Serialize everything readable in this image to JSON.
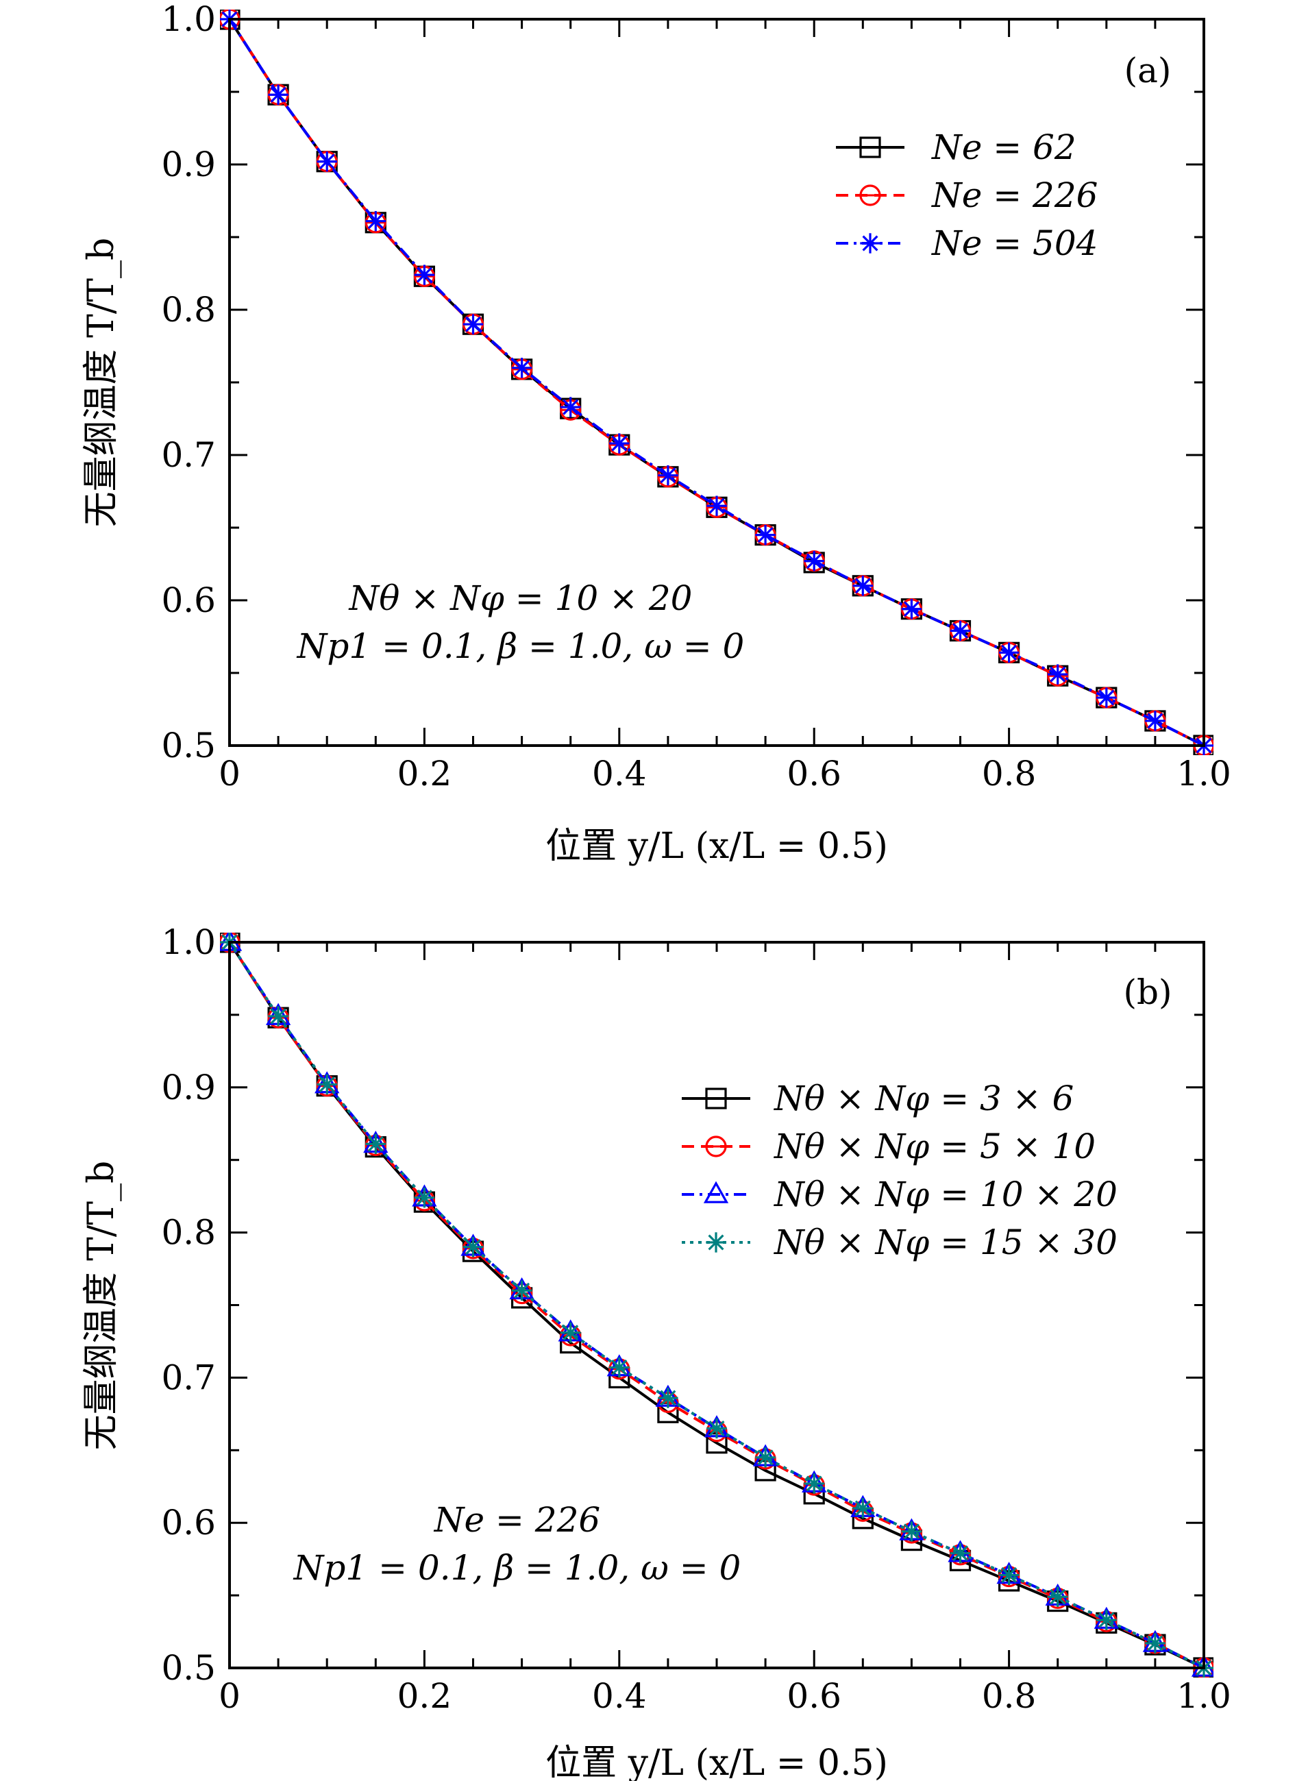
{
  "chart_data": [
    {
      "type": "line",
      "panel_label": "(a)",
      "xlabel": "位置 y/L (x/L = 0.5)",
      "ylabel": "无量纲温度 T/T_b",
      "xlim": [
        0,
        1.0
      ],
      "ylim": [
        0.5,
        1.0
      ],
      "x_ticks": [
        "0",
        "0.2",
        "0.4",
        "0.6",
        "0.8",
        "1.0"
      ],
      "y_ticks": [
        "0.5",
        "0.6",
        "0.7",
        "0.8",
        "0.9",
        "1.0"
      ],
      "annotation": [
        "Nθ × Nφ = 10 × 20",
        "Np1 = 0.1, β = 1.0, ω = 0"
      ],
      "legend_position": "top-right",
      "grid": false,
      "x": [
        0,
        0.05,
        0.1,
        0.15,
        0.2,
        0.25,
        0.3,
        0.35,
        0.4,
        0.45,
        0.5,
        0.55,
        0.6,
        0.65,
        0.7,
        0.75,
        0.8,
        0.85,
        0.9,
        0.95,
        1.0
      ],
      "series": [
        {
          "name": "Ne = 62",
          "color": "#000000",
          "marker": "square",
          "dash": "solid",
          "values": [
            1.0,
            0.948,
            0.902,
            0.86,
            0.823,
            0.79,
            0.759,
            0.732,
            0.707,
            0.685,
            0.664,
            0.645,
            0.626,
            0.61,
            0.594,
            0.579,
            0.564,
            0.548,
            0.533,
            0.517,
            0.5
          ]
        },
        {
          "name": "Ne = 226",
          "color": "#ff0000",
          "marker": "circle-bar",
          "dash": "dashed",
          "values": [
            1.0,
            0.948,
            0.902,
            0.86,
            0.823,
            0.79,
            0.759,
            0.731,
            0.707,
            0.685,
            0.664,
            0.645,
            0.627,
            0.61,
            0.594,
            0.579,
            0.564,
            0.548,
            0.533,
            0.517,
            0.5
          ]
        },
        {
          "name": "Ne = 504",
          "color": "#0000ff",
          "marker": "asterisk",
          "dash": "dashdot",
          "values": [
            1.0,
            0.948,
            0.902,
            0.861,
            0.824,
            0.79,
            0.76,
            0.733,
            0.708,
            0.686,
            0.665,
            0.645,
            0.627,
            0.61,
            0.594,
            0.579,
            0.564,
            0.549,
            0.533,
            0.517,
            0.5
          ]
        }
      ]
    },
    {
      "type": "line",
      "panel_label": "(b)",
      "xlabel": "位置 y/L (x/L = 0.5)",
      "ylabel": "无量纲温度 T/T_b",
      "xlim": [
        0,
        1.0
      ],
      "ylim": [
        0.5,
        1.0
      ],
      "x_ticks": [
        "0",
        "0.2",
        "0.4",
        "0.6",
        "0.8",
        "1.0"
      ],
      "y_ticks": [
        "0.5",
        "0.6",
        "0.7",
        "0.8",
        "0.9",
        "1.0"
      ],
      "annotation": [
        "Ne = 226",
        "Np1 = 0.1, β = 1.0, ω = 0"
      ],
      "legend_position": "top-right",
      "grid": false,
      "x": [
        0,
        0.05,
        0.1,
        0.15,
        0.2,
        0.25,
        0.3,
        0.35,
        0.4,
        0.45,
        0.5,
        0.55,
        0.6,
        0.65,
        0.7,
        0.75,
        0.8,
        0.85,
        0.9,
        0.95,
        1.0
      ],
      "series": [
        {
          "name": "Nθ × Nφ = 3 × 6",
          "color": "#000000",
          "marker": "square",
          "dash": "solid",
          "values": [
            1.0,
            0.948,
            0.901,
            0.859,
            0.821,
            0.787,
            0.755,
            0.724,
            0.7,
            0.676,
            0.655,
            0.636,
            0.62,
            0.603,
            0.588,
            0.574,
            0.56,
            0.546,
            0.531,
            0.516,
            0.5
          ]
        },
        {
          "name": "Nθ × Nφ = 5 × 10",
          "color": "#ff0000",
          "marker": "circle-bar",
          "dash": "dashed",
          "values": [
            1.0,
            0.948,
            0.901,
            0.86,
            0.822,
            0.789,
            0.758,
            0.729,
            0.706,
            0.683,
            0.663,
            0.644,
            0.626,
            0.608,
            0.593,
            0.578,
            0.563,
            0.548,
            0.532,
            0.517,
            0.5
          ]
        },
        {
          "name": "Nθ × Nφ = 10 × 20",
          "color": "#0000ff",
          "marker": "triangle",
          "dash": "dashdot",
          "values": [
            1.0,
            0.949,
            0.902,
            0.861,
            0.824,
            0.79,
            0.76,
            0.731,
            0.707,
            0.686,
            0.665,
            0.645,
            0.627,
            0.61,
            0.594,
            0.579,
            0.564,
            0.549,
            0.533,
            0.517,
            0.5
          ]
        },
        {
          "name": "Nθ × Nφ = 15 × 30",
          "color": "#008080",
          "marker": "asterisk",
          "dash": "dotted",
          "values": [
            1.0,
            0.949,
            0.902,
            0.861,
            0.824,
            0.79,
            0.76,
            0.731,
            0.707,
            0.686,
            0.665,
            0.645,
            0.627,
            0.61,
            0.594,
            0.579,
            0.564,
            0.549,
            0.533,
            0.517,
            0.5
          ]
        }
      ]
    }
  ]
}
